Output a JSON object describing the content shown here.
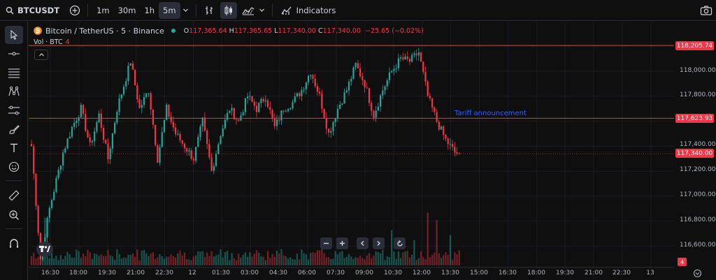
{
  "toolbar": {
    "symbol": "BTCUSDT",
    "timeframes": [
      {
        "label": "1m",
        "active": false
      },
      {
        "label": "30m",
        "active": false
      },
      {
        "label": "1h",
        "active": false
      },
      {
        "label": "5m",
        "active": true
      }
    ],
    "indicators_label": "Indicators",
    "icons": [
      "search-icon",
      "add-symbol-icon",
      "chevron-down-icon",
      "bar-replay-icon",
      "candles-icon",
      "area-chart-icon",
      "chevron-down-icon",
      "indicators-icon",
      "camera-icon"
    ]
  },
  "left_toolbar": {
    "icons": [
      "cursor-icon",
      "trend-line-icon",
      "horizontal-lines-icon",
      "pattern-icon",
      "measure-lines-icon",
      "brush-icon",
      "text-icon",
      "emoji-icon",
      "ruler-icon",
      "zoom-in-icon",
      "magnet-icon"
    ]
  },
  "legend": {
    "title": "Bitcoin / TetherUS · 5 · Binance",
    "open_key": "O",
    "open": "117,365.64",
    "high_key": "H",
    "high": "117,365.65",
    "low_key": "L",
    "low": "117,340.00",
    "close_key": "C",
    "close": "117,340.00",
    "change": "−25.65 (−0.02%)",
    "volume_label": "Vol · BTC",
    "volume_value": "4"
  },
  "price_axis": {
    "ticks": [
      "118,000.00",
      "117,800.00",
      "117,400.00",
      "117,200.00",
      "117,000.00",
      "116,800.00",
      "116,600.00"
    ],
    "labels": [
      "118,205.74",
      "117,623.93",
      "117,340.00"
    ],
    "volume_label": "4"
  },
  "time_axis": {
    "ticks": [
      "16:30",
      "18:00",
      "19:30",
      "21:00",
      "22:30",
      "12",
      "01:30",
      "03:00",
      "04:30",
      "06:00",
      "07:30",
      "09:00",
      "10:30",
      "12:00",
      "13:30",
      "15:00",
      "16:30",
      "18:00",
      "19:30",
      "21:00",
      "22:30",
      "13"
    ]
  },
  "annotation": "Tariff announcement",
  "colors": {
    "up": "#26a69a",
    "down": "#f23645",
    "line": "#f23645",
    "annotation": "#2962ff",
    "background": "#0f0f0f"
  },
  "chart_data": {
    "type": "candlestick",
    "ylim": [
      116500,
      118350
    ],
    "horizontal_lines": [
      118205.74,
      117623.93
    ],
    "last_price": 117340.0,
    "volume_last": 4,
    "keypoints": [
      [
        0,
        117400
      ],
      [
        4,
        116500
      ],
      [
        8,
        116900
      ],
      [
        14,
        117350
      ],
      [
        18,
        117550
      ],
      [
        22,
        117700
      ],
      [
        26,
        117400
      ],
      [
        30,
        117650
      ],
      [
        34,
        117300
      ],
      [
        38,
        117700
      ],
      [
        42,
        117950
      ],
      [
        44,
        118080
      ],
      [
        48,
        117700
      ],
      [
        52,
        117850
      ],
      [
        56,
        117300
      ],
      [
        60,
        117700
      ],
      [
        64,
        117500
      ],
      [
        68,
        117400
      ],
      [
        72,
        117300
      ],
      [
        76,
        117600
      ],
      [
        80,
        117200
      ],
      [
        84,
        117500
      ],
      [
        88,
        117700
      ],
      [
        92,
        117600
      ],
      [
        96,
        117800
      ],
      [
        100,
        117700
      ],
      [
        104,
        117800
      ],
      [
        108,
        117550
      ],
      [
        112,
        117700
      ],
      [
        116,
        117750
      ],
      [
        120,
        117850
      ],
      [
        124,
        118000
      ],
      [
        128,
        117800
      ],
      [
        132,
        117500
      ],
      [
        136,
        117700
      ],
      [
        140,
        117850
      ],
      [
        144,
        118050
      ],
      [
        148,
        117900
      ],
      [
        152,
        117650
      ],
      [
        156,
        117850
      ],
      [
        160,
        118000
      ],
      [
        164,
        118100
      ],
      [
        168,
        118080
      ],
      [
        172,
        118150
      ],
      [
        176,
        117800
      ],
      [
        180,
        117600
      ],
      [
        184,
        117450
      ],
      [
        188,
        117350
      ],
      [
        190,
        117340
      ]
    ],
    "volume_spikes": [
      [
        6,
        3.8
      ],
      [
        160,
        2.8
      ],
      [
        170,
        2.0
      ],
      [
        176,
        4.2
      ],
      [
        180,
        3.6
      ],
      [
        186,
        2.4
      ]
    ]
  }
}
